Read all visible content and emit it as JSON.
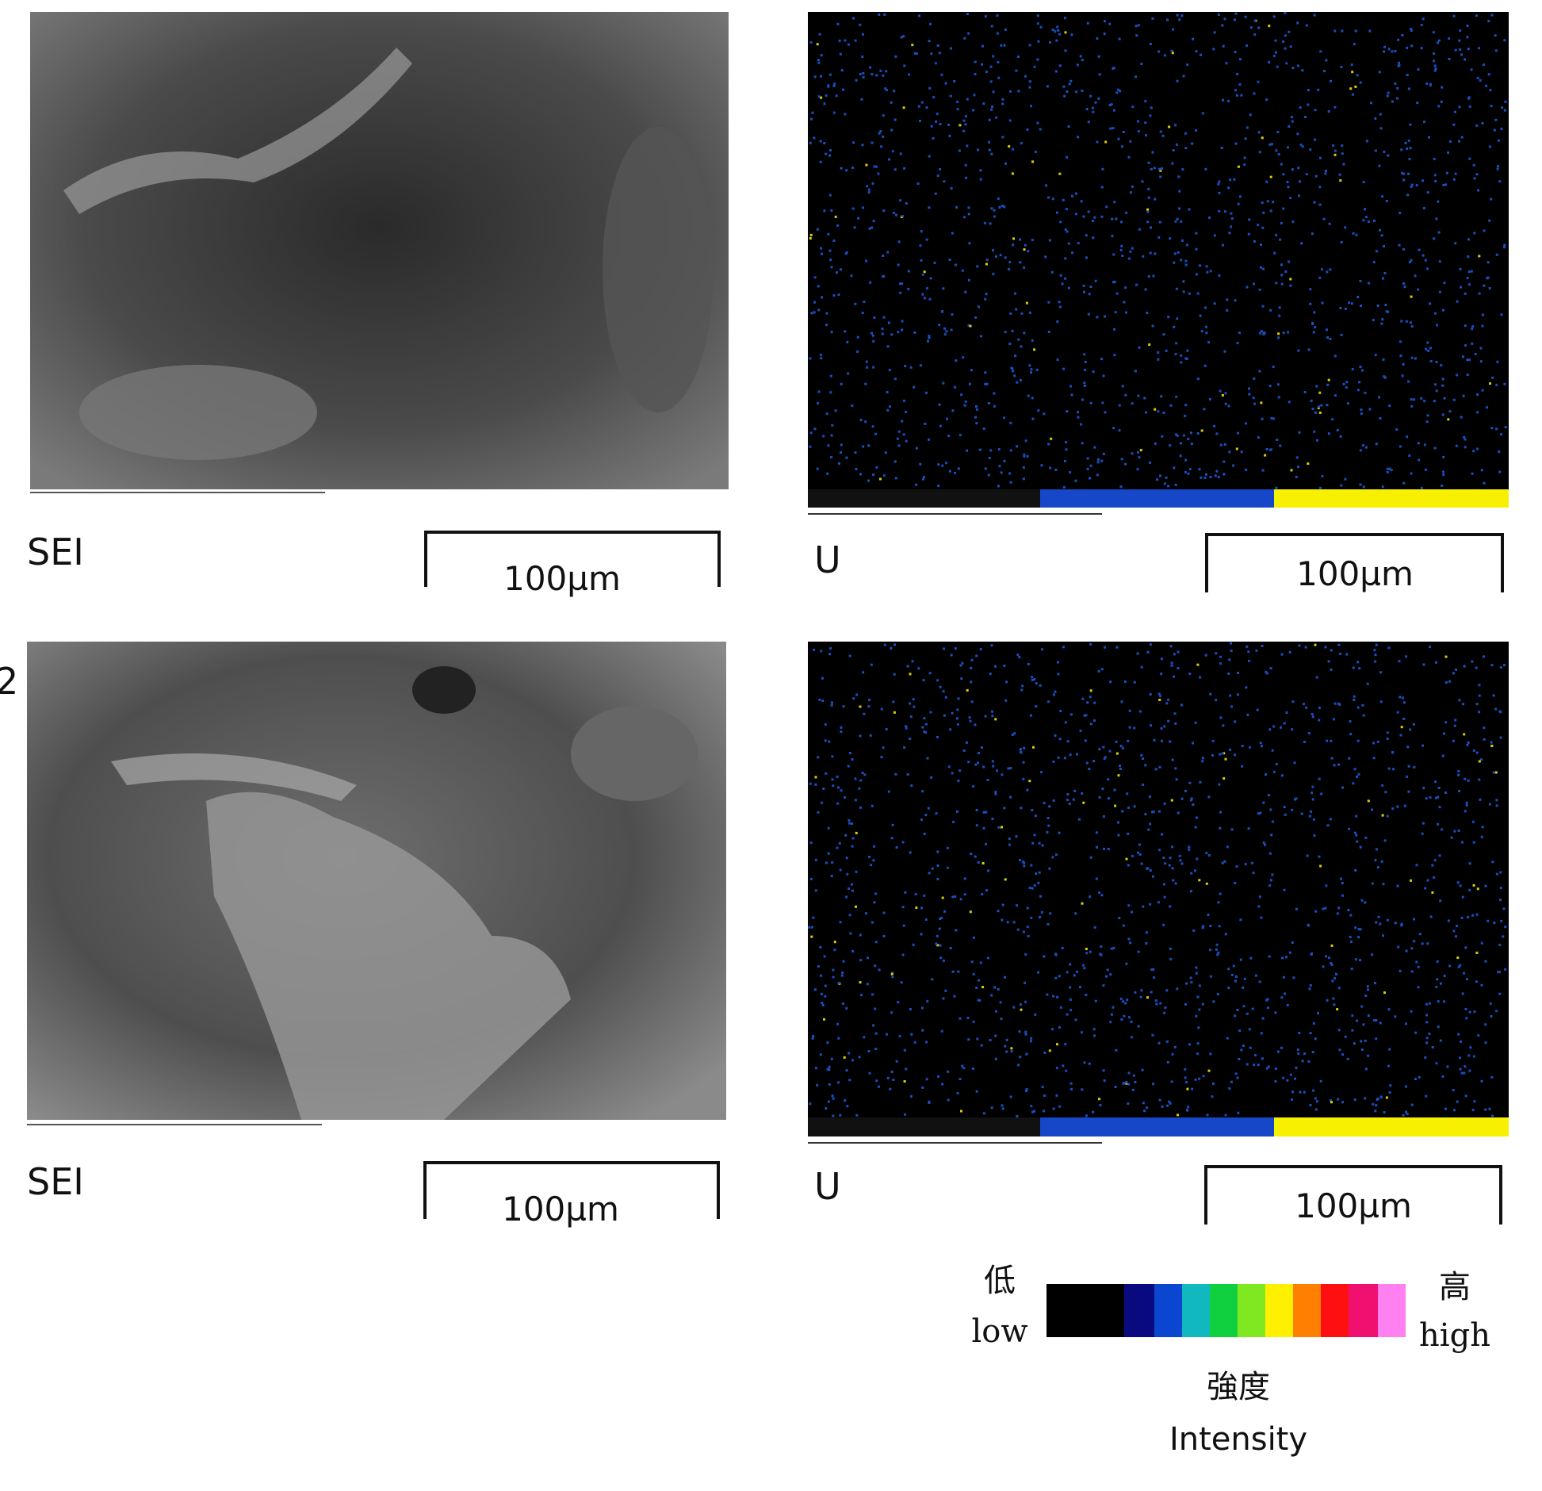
{
  "panels": [
    {
      "label": "SEI",
      "scale": "100µm"
    },
    {
      "label": "U",
      "scale": "100µm"
    },
    {
      "label": "SEI",
      "scale": "100µm"
    },
    {
      "label": "U",
      "scale": "100µm"
    }
  ],
  "row_labels": [
    "2"
  ],
  "legend": {
    "low_ja": "低",
    "low": "low",
    "high_ja": "高",
    "high": "high",
    "title_ja": "強度",
    "title": "Intensity"
  }
}
